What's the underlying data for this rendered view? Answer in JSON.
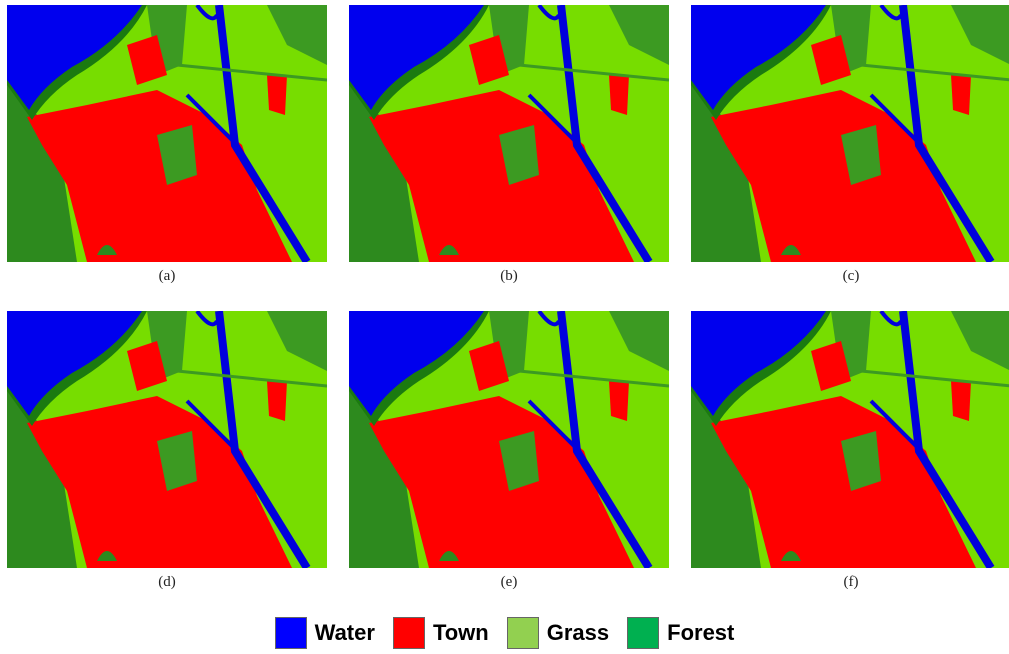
{
  "panels": [
    {
      "caption": "(a)"
    },
    {
      "caption": "(b)"
    },
    {
      "caption": "(c)"
    },
    {
      "caption": "(d)"
    },
    {
      "caption": "(e)"
    },
    {
      "caption": "(f)"
    }
  ],
  "legend": [
    {
      "label": "Water",
      "color": "#0000ff"
    },
    {
      "label": "Town",
      "color": "#ff0000"
    },
    {
      "label": "Grass",
      "color": "#92d050"
    },
    {
      "label": "Forest",
      "color": "#00b050"
    }
  ]
}
